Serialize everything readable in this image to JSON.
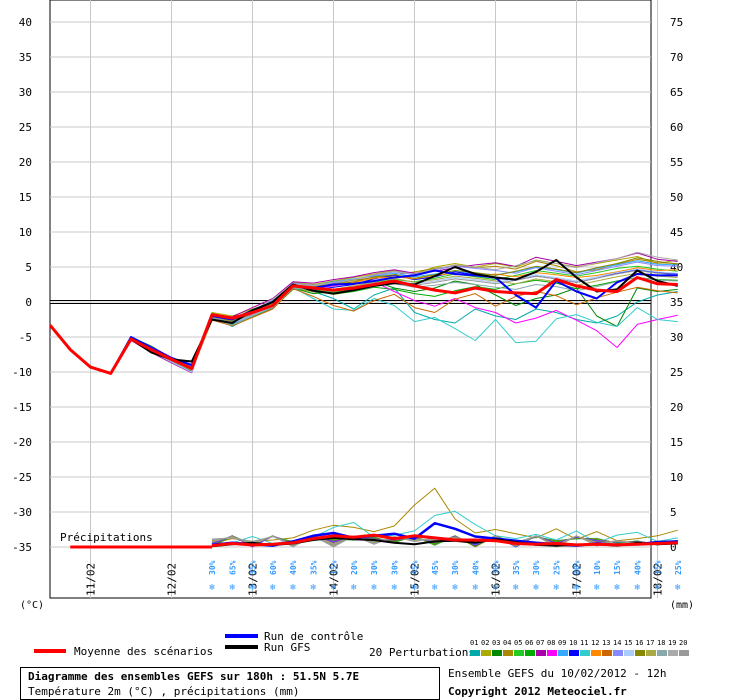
{
  "chart_data": {
    "type": "line",
    "temperature_axis": {
      "unit_label": "(°C)",
      "ticks": [
        40,
        35,
        30,
        25,
        20,
        15,
        10,
        5,
        0,
        -5,
        -10,
        -15,
        -20,
        -25,
        -30,
        -35
      ],
      "range": [
        -35,
        40
      ]
    },
    "precip_axis": {
      "unit_label": "(mm)",
      "ticks": [
        75,
        70,
        65,
        60,
        55,
        50,
        45,
        40,
        35,
        30,
        25,
        20,
        15,
        10,
        5,
        0
      ]
    },
    "x_ticks": [
      "11/02",
      "12/02",
      "13/02",
      "14/02",
      "15/02",
      "16/02",
      "17/02",
      "18/02"
    ],
    "precip_label": "Précipitations",
    "precip_probabilities": [
      "30%",
      "65%",
      "35%",
      "60%",
      "40%",
      "35%",
      "15%",
      "20%",
      "30%",
      "30%",
      "45%",
      "45%",
      "30%",
      "40%",
      "30%",
      "35%",
      "30%",
      "25%",
      "20%",
      "10%",
      "15%",
      "40%",
      "15%",
      "25%"
    ],
    "colors": {
      "mean": "#ff0000",
      "control": "#0000ff",
      "gfs": "#000000",
      "snow_icon": "#3399ff",
      "pert": [
        "#00aaaa",
        "#aaaa00",
        "#008800",
        "#aa8800",
        "#22cc22",
        "#00aa00",
        "#aa00aa",
        "#ff00ff",
        "#33aaff",
        "#0000ff",
        "#33cccc",
        "#ff8800",
        "#cc6600",
        "#8888ff",
        "#aaccff",
        "#888800",
        "#aaaa44",
        "#88aaaa",
        "#aaaaaa",
        "#999999"
      ]
    },
    "series": [
      {
        "name": "Moyenne des scénarios",
        "values": [
          -3.3,
          -6.8,
          -9.3,
          -10.2,
          -5.3,
          -6.8,
          -8.2,
          -9.5,
          -1.8,
          -2.3,
          -1.5,
          -0.5,
          2.3,
          2,
          1.7,
          2,
          2.5,
          3,
          2.3,
          1.7,
          1.3,
          2,
          1.5,
          1.3,
          1.2,
          3.2,
          2.3,
          1.7,
          1.5,
          3.5,
          2.6,
          2.5
        ]
      },
      {
        "name": "Run de contrôle",
        "values": [
          -3.3,
          -6.8,
          -9.3,
          -10.2,
          -5,
          -6.5,
          -8,
          -9,
          -2,
          -2.5,
          -1.2,
          0,
          2.3,
          2,
          2.5,
          2.6,
          3,
          3.5,
          3.8,
          4.5,
          4,
          3.8,
          3.5,
          1,
          -0.8,
          3,
          1.5,
          0.5,
          2.8,
          4,
          3.8,
          3.8
        ]
      },
      {
        "name": "Run GFS",
        "values": [
          -3.3,
          -6.8,
          -9.3,
          -10.2,
          -5.3,
          -7.2,
          -8.2,
          -8.5,
          -2.5,
          -3,
          -1.2,
          0,
          2.5,
          1.6,
          1.2,
          1.7,
          2.3,
          2.7,
          2.5,
          3.7,
          5,
          4,
          3.5,
          3.2,
          4.3,
          6,
          3.5,
          1.5,
          1.8,
          4.5,
          3,
          2.3
        ]
      }
    ],
    "perturbations": [
      [
        -3.3,
        -6.8,
        -9.3,
        -10.2,
        -5,
        -7,
        -8.5,
        -10,
        -2,
        -3.5,
        -2,
        -0.5,
        2.5,
        1.5,
        0.5,
        -1,
        1,
        2,
        -1.5,
        -2.5,
        -3,
        -1,
        -2,
        -2.5,
        -1,
        -1.5,
        -2.5,
        -3,
        -2,
        0,
        1,
        1.5
      ],
      [
        -3.3,
        -6.8,
        -9.3,
        -10.2,
        -5.2,
        -6.5,
        -8,
        -9.5,
        -1.5,
        -2,
        -1,
        0,
        2.8,
        2.5,
        3,
        3.5,
        4,
        4.5,
        4,
        5,
        5.5,
        5,
        5.5,
        5,
        6,
        5.5,
        5,
        5.5,
        6,
        6.5,
        5.5,
        6
      ],
      [
        -3.3,
        -6.8,
        -9.3,
        -10.2,
        -5,
        -6.3,
        -8,
        -9.2,
        -1.8,
        -2.8,
        -1.8,
        -0.8,
        2,
        1.2,
        1.5,
        2,
        3,
        2,
        1.5,
        2,
        3,
        2.5,
        1,
        -0.5,
        0.5,
        1,
        2,
        -2,
        -3.5,
        2,
        1.5,
        1.8
      ],
      [
        -3.3,
        -6.8,
        -9.3,
        -10.2,
        -5.4,
        -6.9,
        -8.1,
        -9.8,
        -2.2,
        -2.6,
        -1.3,
        -0.3,
        2.4,
        2.2,
        2.6,
        3.1,
        3.5,
        3.9,
        4.3,
        4.8,
        5.2,
        4.9,
        5.1,
        4.7,
        5.8,
        5.2,
        4.3,
        4.6,
        5.4,
        6.1,
        5.6,
        5.5
      ],
      [
        -3.3,
        -6.8,
        -9.3,
        -10.2,
        -5.1,
        -6.6,
        -8.4,
        -9.4,
        -1.6,
        -2.4,
        -1.1,
        0.2,
        2.2,
        1.8,
        1.4,
        1.9,
        2.8,
        3.2,
        2.9,
        3.4,
        4,
        3.6,
        3.2,
        3.8,
        4.5,
        4.1,
        3.7,
        4.2,
        4.8,
        5.1,
        4.7,
        4.4
      ],
      [
        -3.3,
        -6.8,
        -9.3,
        -10.2,
        -5.3,
        -6.7,
        -8.6,
        -9.9,
        -2.5,
        -3.2,
        -2.1,
        -0.9,
        1.8,
        1.6,
        1.1,
        1.5,
        2.1,
        1.8,
        1.2,
        0.8,
        1.6,
        2.2,
        1.8,
        2.6,
        3.1,
        2.7,
        1.9,
        2.4,
        3,
        3.5,
        3.2,
        3.1
      ],
      [
        -3.3,
        -6.8,
        -9.3,
        -10.2,
        -5.5,
        -7.2,
        -8.7,
        -10.1,
        -1.9,
        -2.1,
        -0.8,
        0.5,
        2.9,
        2.7,
        3.2,
        3.6,
        4.2,
        4.6,
        4.1,
        4.4,
        4.9,
        5.3,
        5.6,
        5.1,
        6.4,
        5.8,
        5.2,
        5.7,
        6.2,
        7,
        6.1,
        5.8
      ],
      [
        -3.3,
        -6.8,
        -9.3,
        -10.2,
        -5,
        -6.4,
        -7.9,
        -9.1,
        -2.1,
        -2.9,
        -1.7,
        -0.6,
        2.1,
        1.9,
        2.3,
        2.7,
        2.9,
        1.5,
        0.2,
        -0.6,
        0.5,
        -0.8,
        -1.5,
        -3,
        -2.3,
        -1.2,
        -2.6,
        -4.1,
        -6.5,
        -3.2,
        -2.5,
        -1.9
      ],
      [
        -3.3,
        -6.8,
        -9.3,
        -10.2,
        -5.2,
        -6.8,
        -8.3,
        -9.7,
        -2.4,
        -3.1,
        -2,
        -0.7,
        2.6,
        2.3,
        2.9,
        3.3,
        3.7,
        4.1,
        3.6,
        4,
        4.4,
        4.1,
        3.9,
        4.3,
        5,
        4.6,
        4.1,
        4.8,
        5.3,
        5.9,
        5.4,
        5.3
      ],
      [
        -3.3,
        -6.8,
        -9.3,
        -10.2,
        -5.1,
        -6.5,
        -8.1,
        -9.3,
        -1.7,
        -2.3,
        -1.4,
        0.1,
        2.3,
        1.7,
        2.1,
        2.5,
        3.3,
        3.8,
        3.2,
        3.6,
        4.3,
        3.9,
        3.4,
        3.1,
        3.7,
        3.3,
        2.8,
        3.4,
        4.1,
        4.6,
        4.2,
        4
      ],
      [
        -3.3,
        -6.8,
        -9.3,
        -10.2,
        -5.4,
        -7.1,
        -8.5,
        -9.6,
        -2.3,
        -2.7,
        -1.6,
        -0.4,
        2.1,
        0.5,
        -1,
        -1.2,
        0.5,
        -0.5,
        -2.8,
        -2.2,
        -3.8,
        -5.5,
        -2.5,
        -5.8,
        -5.6,
        -2.4,
        -1.8,
        -2.9,
        -3.5,
        -0.8,
        -2.5,
        -2.8
      ],
      [
        -3.3,
        -6.8,
        -9.3,
        -10.2,
        -5.2,
        -6.6,
        -8.2,
        -9.4,
        -1.9,
        -2.6,
        -1.5,
        -0.2,
        2.5,
        2.1,
        2.4,
        2.8,
        3.4,
        3.6,
        3.3,
        3.8,
        4.1,
        3.7,
        4,
        3.6,
        4.2,
        3.9,
        3.5,
        3.8,
        4.3,
        4.9,
        4.5,
        4.6
      ],
      [
        -3.3,
        -6.8,
        -9.3,
        -10.2,
        -5.3,
        -6.9,
        -8.4,
        -9.8,
        -2.6,
        -3.4,
        -2.2,
        -1,
        1.9,
        0.8,
        -0.5,
        -1.3,
        0.2,
        1.1,
        -0.8,
        -1.5,
        0.4,
        1.2,
        -0.6,
        0.8,
        1.5,
        0.9,
        -0.4,
        0.6,
        1.4,
        2.1,
        1.6,
        1.3
      ],
      [
        -3.3,
        -6.8,
        -9.3,
        -10.2,
        -5.1,
        -6.4,
        -8,
        -9.2,
        -1.8,
        -2.5,
        -1.3,
        0.3,
        2.7,
        2.4,
        2.7,
        3.2,
        3.8,
        4.3,
        3.9,
        4.6,
        5.1,
        4.8,
        4.5,
        4.1,
        4.9,
        4.4,
        3.9,
        4.5,
        5.1,
        5.7,
        5.2,
        5.1
      ],
      [
        -3.3,
        -6.8,
        -9.3,
        -10.2,
        -5.4,
        -7,
        -8.6,
        -10,
        -2.2,
        -3,
        -1.9,
        -0.6,
        2.3,
        2,
        1.7,
        2.2,
        2.7,
        3.1,
        2.6,
        3,
        3.5,
        3.2,
        2.8,
        3.3,
        3.9,
        3.5,
        3,
        3.6,
        4.2,
        4.7,
        4.3,
        4.1
      ],
      [
        -3.3,
        -6.8,
        -9.3,
        -10.2,
        -5.2,
        -6.7,
        -8.3,
        -9.5,
        -2,
        -2.8,
        -1.6,
        -0.1,
        2.4,
        2.2,
        2.5,
        2.9,
        3.6,
        3.9,
        3.4,
        3.9,
        4.5,
        4.2,
        3.8,
        4.4,
        5.1,
        4.7,
        4.2,
        4.9,
        5.5,
        6.3,
        5.8,
        5.4
      ],
      [
        -3.3,
        -6.8,
        -9.3,
        -10.2,
        -5,
        -6.6,
        -8.1,
        -9.3,
        -2.1,
        -2.6,
        -1.4,
        -0.3,
        2.1,
        1.4,
        1.8,
        2.3,
        2.9,
        3.4,
        2.8,
        3.2,
        3.7,
        3.4,
        3,
        2.6,
        3.3,
        2.9,
        2.4,
        3,
        3.6,
        4.1,
        3.7,
        3.5
      ],
      [
        -3.3,
        -6.8,
        -9.3,
        -10.2,
        -5.3,
        -6.9,
        -8.5,
        -9.7,
        -2.4,
        -3.3,
        -2,
        -0.8,
        2,
        1.7,
        1.2,
        1.6,
        2.2,
        2.6,
        2.1,
        2.4,
        2.8,
        2.5,
        2.1,
        1.8,
        2.5,
        2.2,
        1.6,
        2.2,
        2.9,
        3.5,
        3.1,
        3
      ],
      [
        -3.3,
        -6.8,
        -9.3,
        -10.2,
        -5.1,
        -6.5,
        -8.2,
        -9.4,
        -1.8,
        -2.4,
        -1.2,
        0.4,
        2.6,
        2.3,
        2.8,
        3.2,
        3.9,
        4.4,
        4,
        4.7,
        5.3,
        5,
        4.6,
        5.2,
        5.9,
        5.5,
        4.9,
        5.6,
        6.2,
        7.1,
        6.4,
        6
      ],
      [
        -3.3,
        -6.8,
        -9.3,
        -10.2,
        -5.2,
        -6.8,
        -8.4,
        -9.6,
        -2.2,
        -2.9,
        -1.8,
        -0.5,
        2.2,
        1.9,
        1.5,
        2,
        2.6,
        2.9,
        2.4,
        2.8,
        3.3,
        3,
        2.6,
        3.1,
        3.7,
        3.3,
        2.8,
        3.4,
        4,
        4.5,
        4.1,
        3.9
      ]
    ],
    "precip_series": {
      "mean": [
        0,
        0,
        0,
        0,
        0,
        0,
        0,
        0,
        0.2,
        0.5,
        0.3,
        0.4,
        0.6,
        1.2,
        1.6,
        1.4,
        1.7,
        1.2,
        1.6,
        1.3,
        1.0,
        1.0,
        0.9,
        0.5,
        0.4,
        0.5,
        0.3,
        0.4,
        0.3,
        0.4,
        0.5,
        0.6
      ],
      "control": [
        0,
        0,
        0,
        0,
        0,
        0,
        0,
        0,
        0.3,
        0.6,
        0.4,
        0.2,
        0.8,
        1.6,
        2.0,
        1.3,
        1.6,
        1.9,
        1.2,
        3.4,
        2.6,
        1.5,
        1.2,
        0.9,
        0.6,
        0.4,
        0.2,
        0.5,
        0.3,
        0.4,
        0.7,
        0.8
      ],
      "gfs": [
        0,
        0,
        0,
        0,
        0,
        0,
        0,
        0,
        0.1,
        0.4,
        0.6,
        0.3,
        0.5,
        1.0,
        1.3,
        1.1,
        1.0,
        0.6,
        0.4,
        0.8,
        0.9,
        0.6,
        1.1,
        0.7,
        0.3,
        0.2,
        0.3,
        0.4,
        0.2,
        0.6,
        0.4,
        0.5
      ],
      "peak_members": [
        [
          0,
          0,
          0,
          0,
          0,
          0,
          0,
          0,
          0.5,
          1.2,
          0.8,
          1.0,
          1.3,
          2.4,
          3.1,
          2.8,
          2.2,
          3.0,
          6.0,
          8.4,
          4.0,
          2.0,
          2.5,
          1.9,
          1.3,
          2.6,
          1.1,
          2.2,
          0.9,
          1.2,
          1.6,
          2.4
        ],
        [
          0,
          0,
          0,
          0,
          0,
          0,
          0,
          0,
          0.3,
          0.6,
          1.5,
          0.5,
          0.9,
          1.4,
          2.8,
          3.5,
          1.4,
          1.7,
          2.3,
          4.5,
          5.1,
          3.2,
          1.6,
          1.2,
          1.8,
          1.0,
          2.3,
          0.6,
          1.7,
          2.1,
          0.8,
          1.3
        ]
      ]
    },
    "legend": {
      "mean": "Moyenne des scénarios",
      "control": "Run de contrôle",
      "gfs": "Run GFS",
      "perturbations": "20 Perturbations",
      "pert_ids": [
        "01",
        "02",
        "03",
        "04",
        "05",
        "06",
        "07",
        "08",
        "09",
        "10",
        "11",
        "12",
        "13",
        "14",
        "15",
        "16",
        "17",
        "18",
        "19",
        "20"
      ]
    }
  },
  "footer": {
    "title": "Diagramme des ensembles GEFS sur 180h : 51.5N 5.7E",
    "subtitle": "Température 2m (°C) , précipitations (mm)",
    "run_info": "Ensemble GEFS du 10/02/2012 - 12h",
    "copyright": "Copyright 2012 Meteociel.fr"
  }
}
